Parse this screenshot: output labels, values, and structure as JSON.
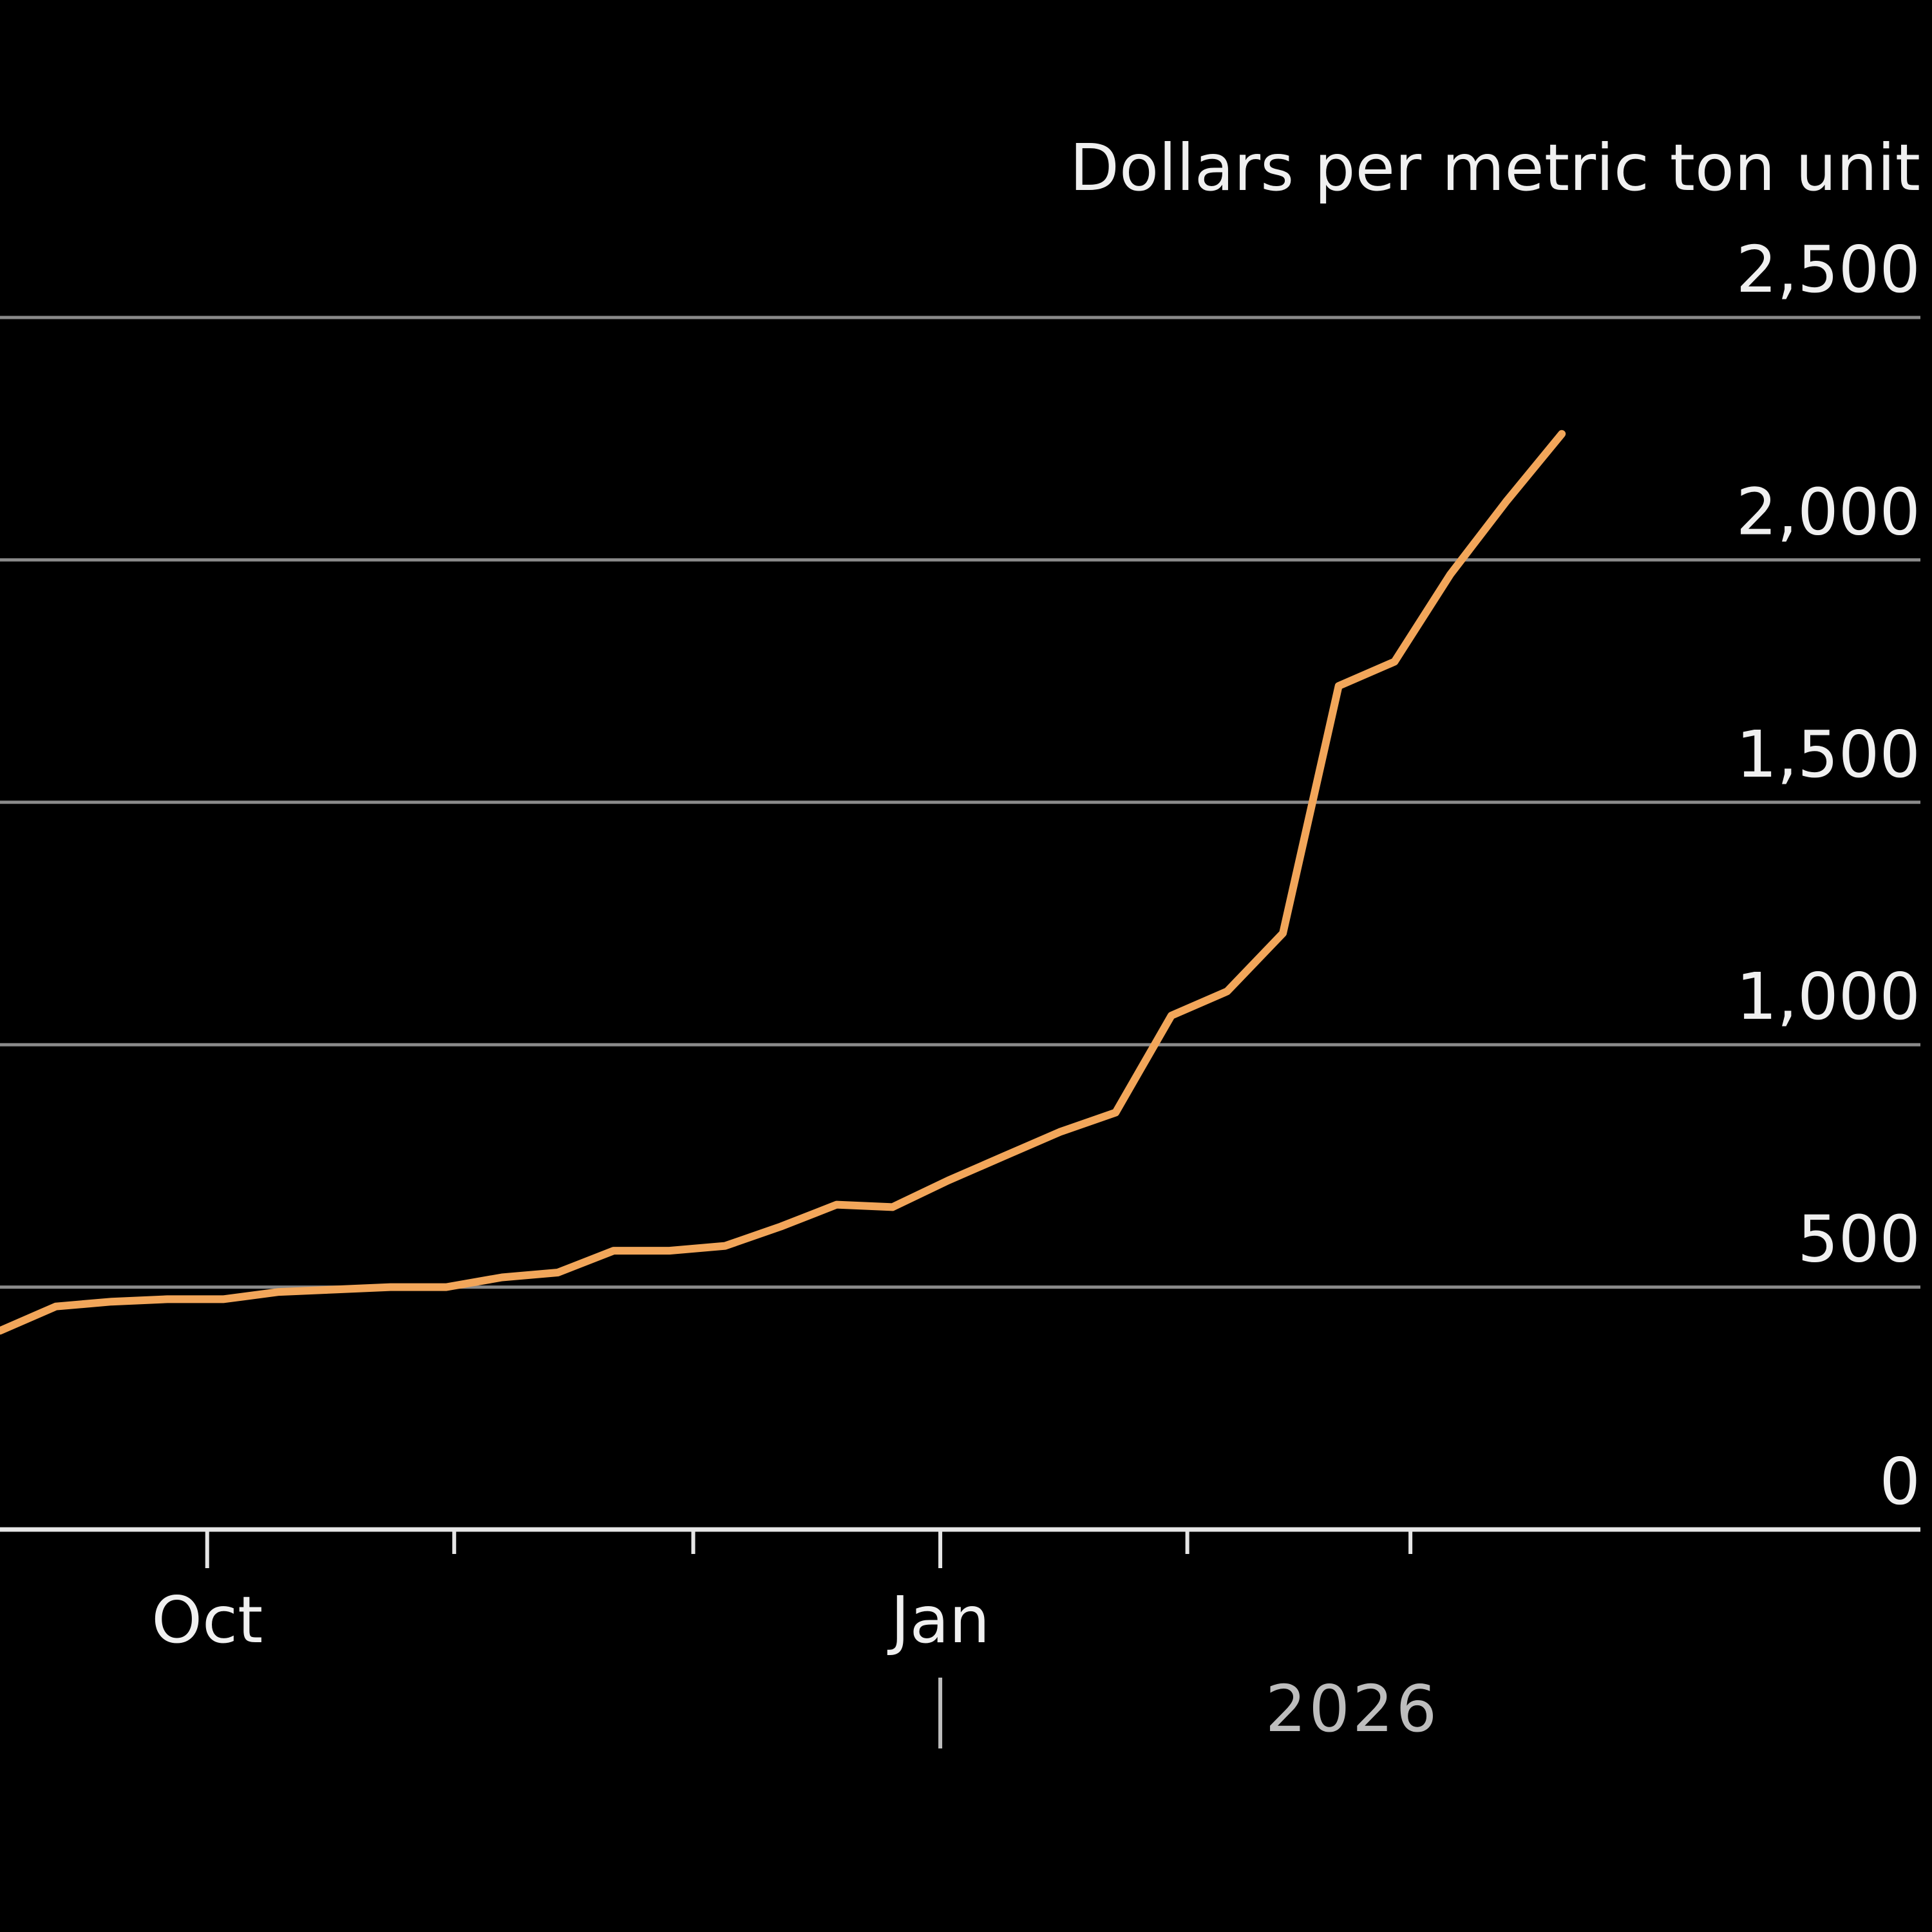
{
  "chart_data": {
    "type": "line",
    "title": "",
    "xlabel": "",
    "ylabel": "Dollars per metric ton unit",
    "ylim": [
      0,
      2500
    ],
    "xlim": [
      "2025-09-05",
      "2026-05-04"
    ],
    "y_ticks": [
      0,
      500,
      1000,
      1500,
      2000,
      2500
    ],
    "y_tick_labels": [
      "0",
      "500",
      "1,000",
      "1,500",
      "2,000",
      "2,500"
    ],
    "x_ticks": [
      "2025-10-01",
      "2025-11-01",
      "2025-12-01",
      "2026-01-01",
      "2026-02-01",
      "2026-03-01"
    ],
    "x_tick_labels": [
      "Oct",
      "",
      "",
      "Jan",
      "",
      ""
    ],
    "year_label": "2026",
    "grid": true,
    "legend": "none",
    "line_color": "#f2a65a",
    "grid_color": "#8a8a8a",
    "axis_color": "#e6e6e6",
    "background_color": "#000000",
    "series": [
      {
        "values": [
          {
            "x": "2025-09-05",
            "y": 410
          },
          {
            "x": "2025-09-12",
            "y": 460
          },
          {
            "x": "2025-09-19",
            "y": 470
          },
          {
            "x": "2025-09-26",
            "y": 475
          },
          {
            "x": "2025-10-03",
            "y": 475
          },
          {
            "x": "2025-10-10",
            "y": 490
          },
          {
            "x": "2025-10-17",
            "y": 495
          },
          {
            "x": "2025-10-24",
            "y": 500
          },
          {
            "x": "2025-10-31",
            "y": 500
          },
          {
            "x": "2025-11-07",
            "y": 520
          },
          {
            "x": "2025-11-14",
            "y": 530
          },
          {
            "x": "2025-11-21",
            "y": 575
          },
          {
            "x": "2025-11-28",
            "y": 575
          },
          {
            "x": "2025-12-05",
            "y": 585
          },
          {
            "x": "2025-12-12",
            "y": 625
          },
          {
            "x": "2025-12-19",
            "y": 670
          },
          {
            "x": "2025-12-26",
            "y": 665
          },
          {
            "x": "2026-01-02",
            "y": 720
          },
          {
            "x": "2026-01-09",
            "y": 770
          },
          {
            "x": "2026-01-16",
            "y": 820
          },
          {
            "x": "2026-01-23",
            "y": 860
          },
          {
            "x": "2026-01-30",
            "y": 1060
          },
          {
            "x": "2026-02-06",
            "y": 1110
          },
          {
            "x": "2026-02-13",
            "y": 1230
          },
          {
            "x": "2026-02-20",
            "y": 1740
          },
          {
            "x": "2026-02-27",
            "y": 1790
          },
          {
            "x": "2026-03-06",
            "y": 1970
          },
          {
            "x": "2026-03-13",
            "y": 2120
          },
          {
            "x": "2026-03-20",
            "y": 2260
          }
        ]
      }
    ]
  }
}
